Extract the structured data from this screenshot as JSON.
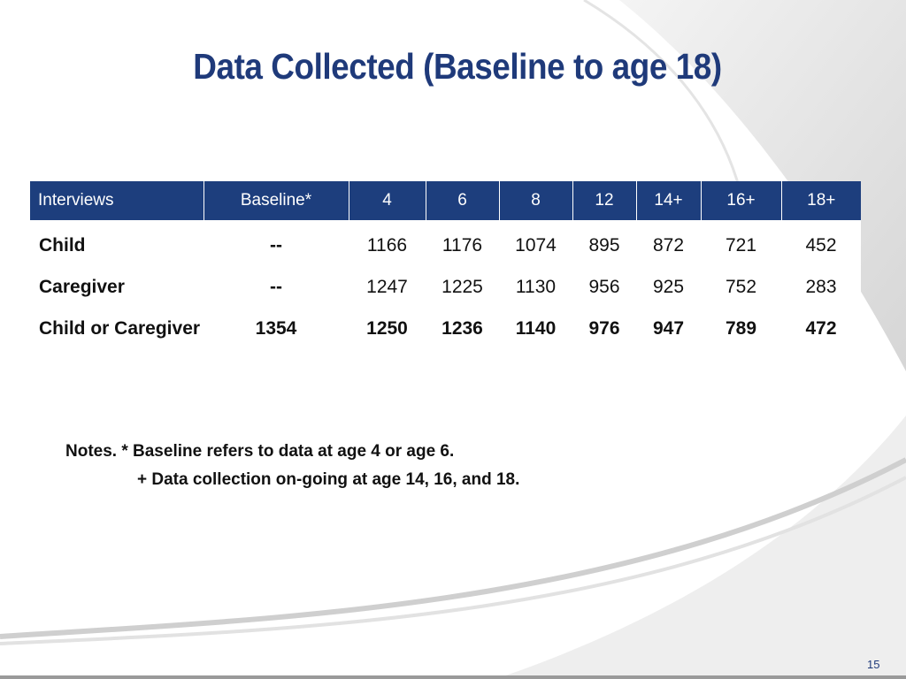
{
  "title": "Data Collected (Baseline to age 18)",
  "table": {
    "headers": [
      "Interviews",
      "Baseline*",
      "4",
      "6",
      "8",
      "12",
      "14+",
      "16+",
      "18+"
    ],
    "rows": [
      {
        "label": "Child",
        "cells": [
          "--",
          "1166",
          "1176",
          "1074",
          "895",
          "872",
          "721",
          "452"
        ]
      },
      {
        "label": "Caregiver",
        "cells": [
          "--",
          "1247",
          "1225",
          "1130",
          "956",
          "925",
          "752",
          "283"
        ]
      },
      {
        "label": "Child or Caregiver",
        "cells": [
          "1354",
          "1250",
          "1236",
          "1140",
          "976",
          "947",
          "789",
          "472"
        ]
      }
    ]
  },
  "notes": {
    "line1": "Notes.  * Baseline refers to data at age 4 or age 6.",
    "line2": "+ Data collection on-going at age 14, 16, and 18."
  },
  "page_number": "15",
  "colors": {
    "header_bg": "#1d3e7d",
    "title": "#1f3a7a",
    "background_swoosh": "#d9d9d9"
  }
}
